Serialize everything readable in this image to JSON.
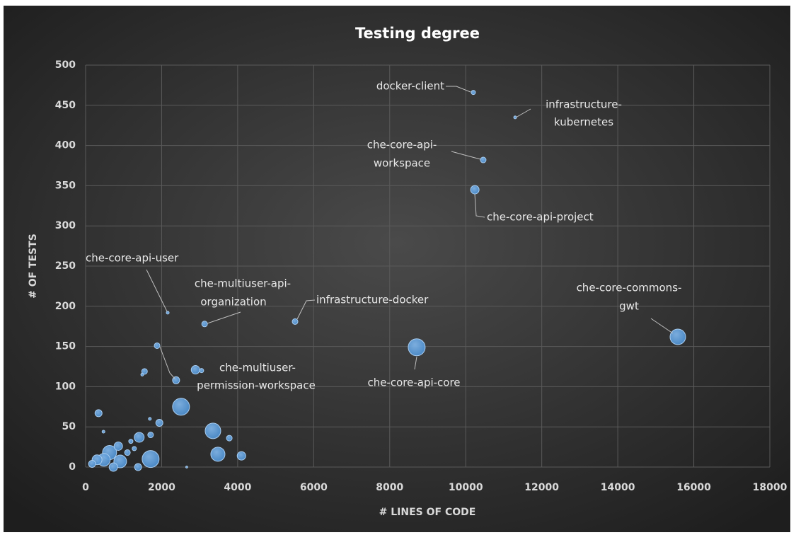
{
  "chart_data": {
    "type": "bubble",
    "title": "Testing  degree",
    "x_label": "# LINES OF CODE",
    "y_label": "# OF TESTS",
    "color": "#5b9bd5",
    "xlim": [
      0,
      18000
    ],
    "xticks": [
      0,
      2000,
      4000,
      6000,
      8000,
      10000,
      12000,
      14000,
      16000,
      18000
    ],
    "ylim": [
      0,
      500
    ],
    "yticks": [
      0,
      50,
      100,
      150,
      200,
      250,
      300,
      350,
      400,
      450,
      500
    ],
    "grid": true,
    "x": [
      10200,
      11300,
      10460,
      10240,
      15580,
      8710,
      5510,
      3130,
      2160,
      2380,
      1880,
      2890,
      3050,
      1550,
      1490,
      340,
      470,
      2510,
      1690,
      1940,
      1710,
      3350,
      3780,
      1410,
      3480,
      4100,
      1710,
      1380,
      630,
      480,
      910,
      300,
      860,
      1100,
      170,
      730,
      2660,
      1190,
      1280
    ],
    "values": [
      466,
      435,
      382,
      345,
      162,
      149,
      181,
      178,
      192,
      108,
      151,
      121,
      120,
      119,
      115,
      67,
      44,
      75,
      60,
      55,
      40,
      45,
      36,
      37,
      16,
      14,
      10,
      0,
      18,
      9,
      7,
      9,
      26,
      18,
      4,
      0,
      0,
      32,
      23
    ],
    "sizes": [
      9,
      4,
      16,
      36,
      121,
      144,
      16,
      16,
      4,
      25,
      16,
      36,
      9,
      16,
      4,
      25,
      4,
      144,
      4,
      25,
      16,
      121,
      16,
      49,
      100,
      36,
      144,
      25,
      100,
      81,
      81,
      49,
      36,
      16,
      25,
      36,
      2,
      9,
      9
    ],
    "labels": [
      [
        "docker-client"
      ],
      [
        "infrastructure-",
        "kubernetes"
      ],
      [
        "che-core-api-",
        "workspace"
      ],
      [
        "che-core-api-project"
      ],
      [
        "che-core-commons-",
        "gwt"
      ],
      [
        "che-core-api-core"
      ],
      [
        "infrastructure-docker"
      ],
      [
        "che-multiuser-api-",
        "organization"
      ],
      [
        "che-core-api-user"
      ],
      [
        "che-multiuser-",
        "permission-workspace"
      ]
    ]
  }
}
